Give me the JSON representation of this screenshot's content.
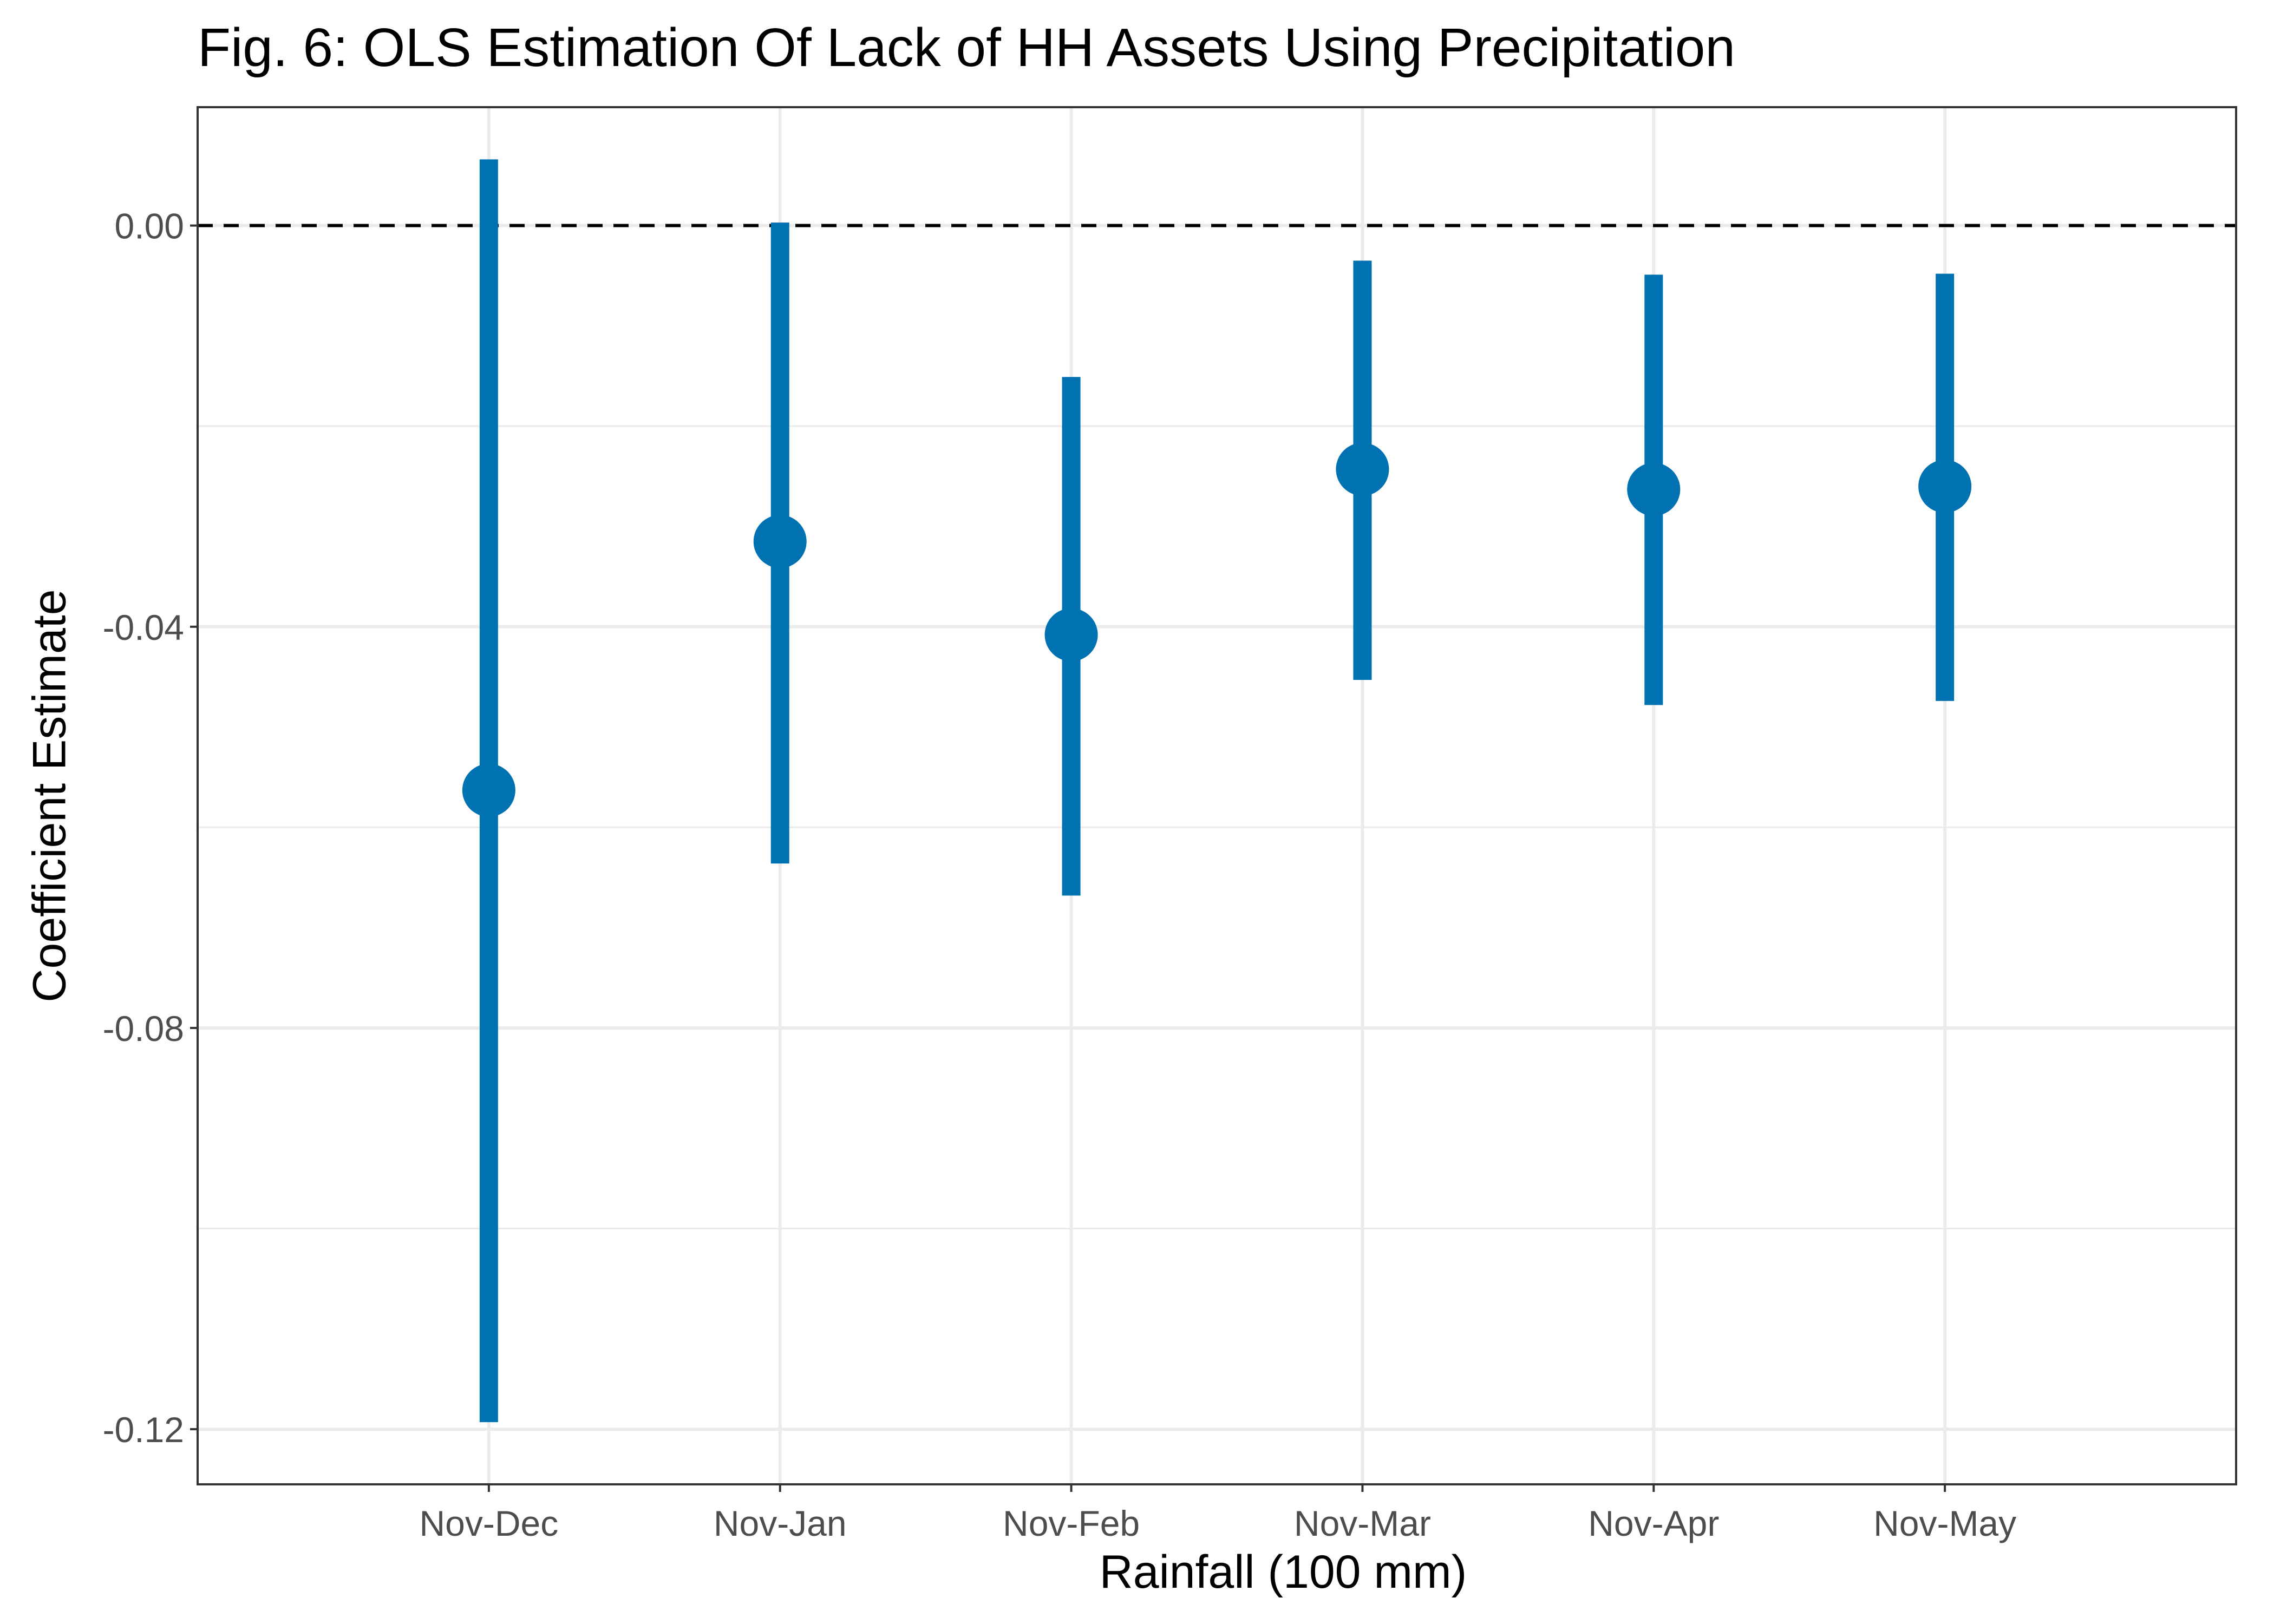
{
  "chart_data": {
    "type": "errorbar",
    "title": "Fig. 6: OLS Estimation Of Lack of HH Assets Using Precipitation",
    "xlabel": "Rainfall (100 mm)",
    "ylabel": "Coefficient Estimate",
    "categories": [
      "Nov-Dec",
      "Nov-Jan",
      "Nov-Feb",
      "Nov-Mar",
      "Nov-Apr",
      "Nov-May"
    ],
    "series": [
      {
        "estimate": [
          -0.0563,
          -0.0315,
          -0.0408,
          -0.0243,
          -0.0263,
          -0.026
        ],
        "lower": [
          -0.1193,
          -0.0636,
          -0.0668,
          -0.0453,
          -0.0478,
          -0.0474
        ],
        "upper": [
          0.0066,
          0.0003,
          -0.0151,
          -0.0035,
          -0.0049,
          -0.0048
        ]
      }
    ],
    "ylim": [
      -0.1255,
      0.0118
    ],
    "yticks": [
      0.0,
      -0.04,
      -0.08,
      -0.12
    ],
    "ytick_labels": [
      "0.00",
      "-0.04",
      "-0.08",
      "-0.12"
    ],
    "reference_line": {
      "y": 0.0,
      "style": "dashed"
    },
    "grid": true,
    "legend": "none",
    "colors": {
      "series": "#0072B2",
      "reference": "#000000",
      "grid": "#EBEBEB",
      "border": "#333333",
      "tick_text": "#4D4D4D"
    }
  }
}
